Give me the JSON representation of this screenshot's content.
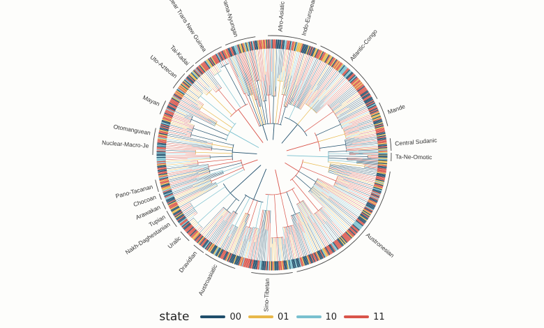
{
  "figure": {
    "type": "circular-phylogenetic-tree",
    "families": [
      {
        "name": "Afro-Asiatic",
        "angle": -86
      },
      {
        "name": "Indo-European",
        "angle": -75
      },
      {
        "name": "Atlantic-Congo",
        "angle": -50
      },
      {
        "name": "Mande",
        "angle": -20
      },
      {
        "name": "Central Sudanic",
        "angle": -5
      },
      {
        "name": "Ta-Ne-Omotic",
        "angle": 1
      },
      {
        "name": "Austronesian",
        "angle": 40
      },
      {
        "name": "Sino-Tibetan",
        "angle": 92
      },
      {
        "name": "Austroasiatic",
        "angle": 117
      },
      {
        "name": "Dravidian",
        "angle": 128
      },
      {
        "name": "Uralic",
        "angle": 138
      },
      {
        "name": "Nakh-Daghestanian",
        "angle": 146
      },
      {
        "name": "Tupian",
        "angle": 150
      },
      {
        "name": "Arawakan",
        "angle": 155
      },
      {
        "name": "Chocoan",
        "angle": 160
      },
      {
        "name": "Pano-Tacanan",
        "angle": 165
      },
      {
        "name": "Nuclear-Macro-Je",
        "angle": 184
      },
      {
        "name": "Otomanguean",
        "angle": 190
      },
      {
        "name": "Mayan",
        "angle": 204
      },
      {
        "name": "Uto-Aztecan",
        "angle": 219
      },
      {
        "name": "Tai-Kadai",
        "angle": 227
      },
      {
        "name": "Nuclear Trans New Guinea",
        "angle": 237
      },
      {
        "name": "Pama-Nyungan",
        "angle": 253
      }
    ]
  },
  "legend": {
    "title": "state",
    "items": [
      {
        "label": "00",
        "color": "#1f4e6b"
      },
      {
        "label": "01",
        "color": "#e8b84a"
      },
      {
        "label": "10",
        "color": "#79c0cf"
      },
      {
        "label": "11",
        "color": "#d9544a"
      }
    ]
  }
}
